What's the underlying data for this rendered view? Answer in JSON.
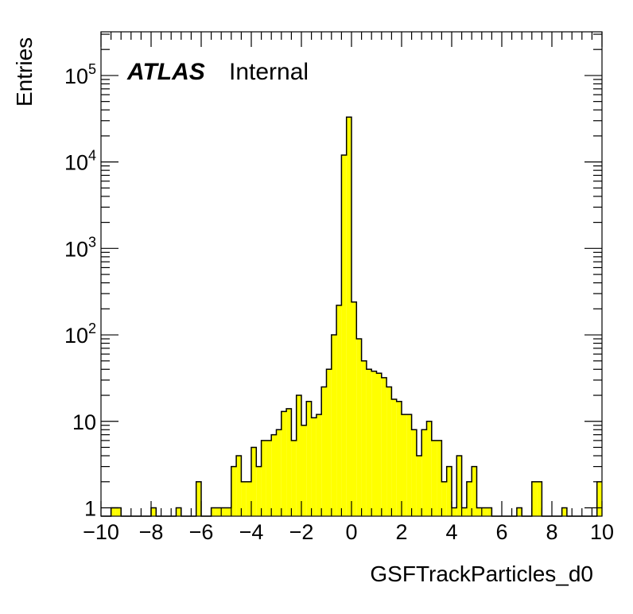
{
  "chart_data": {
    "type": "histogram",
    "title": "",
    "xlabel": "GSFTrackParticles_d0",
    "ylabel": "Entries",
    "xlim": [
      -10,
      10
    ],
    "ylim": [
      0.8,
      320000
    ],
    "yscale": "log",
    "bins": 100,
    "bin_width": 0.2,
    "fill_color": "#ffff00",
    "line_color": "#000000",
    "label_main": "ATLAS",
    "label_status": "Internal",
    "x_tick_labels": [
      "−10",
      "−8",
      "−6",
      "−4",
      "−2",
      "0",
      "2",
      "4",
      "6",
      "8",
      "10"
    ],
    "y_ticks": [
      {
        "value": 1,
        "base": "1",
        "exp": ""
      },
      {
        "value": 10,
        "base": "10",
        "exp": ""
      },
      {
        "value": 100,
        "base": "10",
        "exp": "2"
      },
      {
        "value": 1000,
        "base": "10",
        "exp": "3"
      },
      {
        "value": 10000,
        "base": "10",
        "exp": "4"
      },
      {
        "value": 100000,
        "base": "10",
        "exp": "5"
      }
    ],
    "bin_lows": [
      -10,
      -9.8,
      -9.6,
      -9.4,
      -9.2,
      -9,
      -8.8,
      -8.6,
      -8.4,
      -8.2,
      -8,
      -7.8,
      -7.6,
      -7.4,
      -7.2,
      -7,
      -6.8,
      -6.6,
      -6.4,
      -6.2,
      -6,
      -5.8,
      -5.6,
      -5.4,
      -5.2,
      -5,
      -4.8,
      -4.6,
      -4.4,
      -4.2,
      -4,
      -3.8,
      -3.6,
      -3.4,
      -3.2,
      -3,
      -2.8,
      -2.6,
      -2.4,
      -2.2,
      -2,
      -1.8,
      -1.6,
      -1.4,
      -1.2,
      -1,
      -0.8,
      -0.6,
      -0.4,
      -0.2,
      0,
      0.2,
      0.4,
      0.6,
      0.8,
      1,
      1.2,
      1.4,
      1.6,
      1.8,
      2,
      2.2,
      2.4,
      2.6,
      2.8,
      3,
      3.2,
      3.4,
      3.6,
      3.8,
      4,
      4.2,
      4.4,
      4.6,
      4.8,
      5,
      5.2,
      5.4,
      5.6,
      5.8,
      6,
      6.2,
      6.4,
      6.6,
      6.8,
      7,
      7.2,
      7.4,
      7.6,
      7.8,
      8,
      8.2,
      8.4,
      8.6,
      8.8,
      9,
      9.2,
      9.4,
      9.6,
      9.8
    ],
    "counts": [
      0,
      0,
      1,
      1,
      0,
      0,
      0,
      0,
      0,
      0,
      1,
      0,
      0,
      0,
      0,
      1,
      0,
      0,
      0,
      2,
      0,
      0,
      1,
      1,
      1,
      1,
      3,
      4,
      2,
      2,
      5,
      3,
      6,
      6,
      7,
      8,
      13,
      14,
      6,
      20,
      9,
      17,
      11,
      12,
      25,
      40,
      100,
      220,
      12000,
      33000,
      240,
      90,
      50,
      40,
      38,
      36,
      32,
      25,
      18,
      17,
      12,
      12,
      8,
      4,
      8,
      10,
      6,
      6,
      2,
      3,
      1,
      4,
      1,
      2,
      3,
      1,
      1,
      1,
      0,
      0,
      0,
      0,
      0,
      1,
      0,
      0,
      2,
      2,
      0,
      0,
      0,
      0,
      1,
      0,
      0,
      0,
      0,
      0,
      0,
      2
    ]
  }
}
